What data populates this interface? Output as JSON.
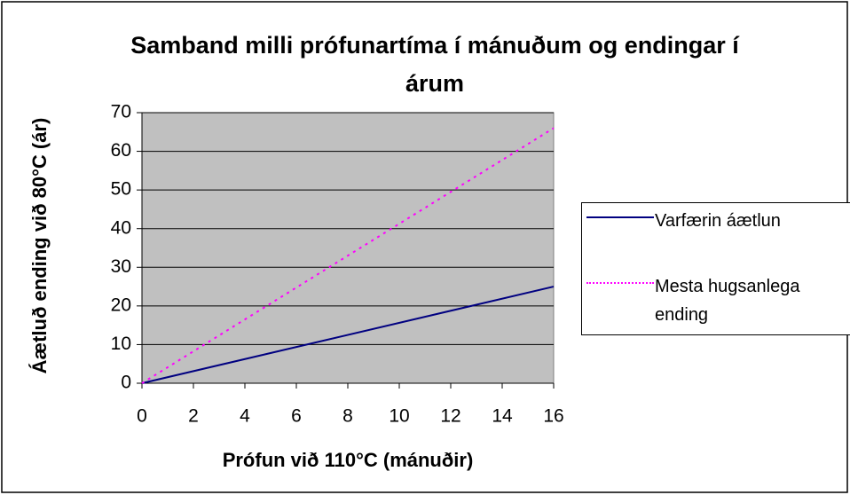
{
  "chart_data": {
    "type": "line",
    "title": "Samband milli prófunartíma í mánuðum og endingar í árum",
    "x_label": "Prófun við 110°C (mánuðir)",
    "y_label": "Áætluð ending við 80°C (ár)",
    "x": [
      0,
      16
    ],
    "series": [
      {
        "name": "Varfærin áætlun",
        "color": "#000080",
        "dash": "solid",
        "values": [
          0,
          25
        ]
      },
      {
        "name": "Mesta hugsanlega ending",
        "color": "#ff00ff",
        "dash": "dotted",
        "values": [
          0,
          66
        ]
      }
    ],
    "xlim": [
      0,
      16
    ],
    "xticks": [
      0,
      2,
      4,
      6,
      8,
      10,
      12,
      14,
      16
    ],
    "ylim": [
      0,
      70
    ],
    "yticks": [
      0,
      10,
      20,
      30,
      40,
      50,
      60,
      70
    ],
    "grid": true,
    "legend": "right",
    "plot_background": "#c0c0c0"
  }
}
